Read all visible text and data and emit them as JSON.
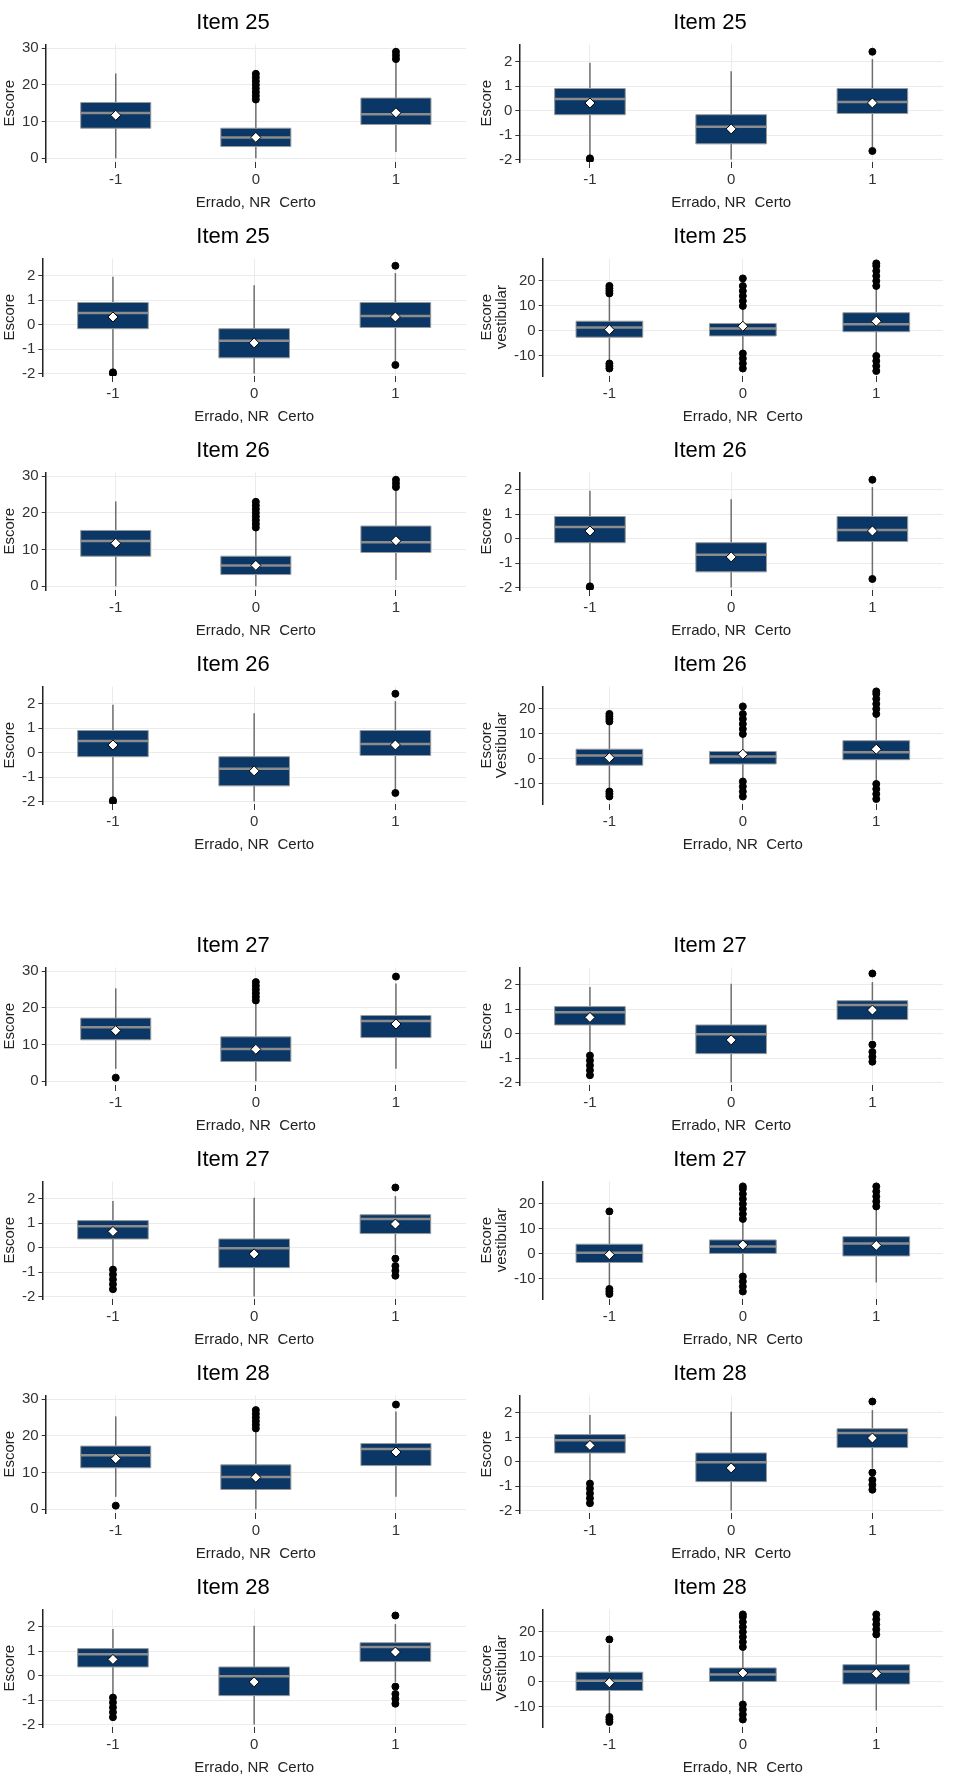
{
  "chart_data": [
    {
      "type": "box",
      "title": "Item 25",
      "xlabel": "Errado, NR  Certo",
      "ylabel": "Escore",
      "categories": [
        "-1",
        "0",
        "1"
      ],
      "color": "#0b3766",
      "grid": true,
      "ylim": [
        -1,
        31
      ],
      "yticks": [
        0,
        10,
        20,
        30
      ],
      "boxes": [
        {
          "low": 0,
          "q1": 8.2,
          "median": 12.3,
          "q3": 15.2,
          "high": 23.1,
          "mean": 11.7
        },
        {
          "low": 0,
          "q1": 3.2,
          "median": 5.7,
          "q3": 8.2,
          "high": 15.5,
          "mean": 5.7,
          "outliers": [
            16,
            17,
            18,
            19,
            20,
            21,
            22,
            23
          ]
        },
        {
          "low": 1.7,
          "q1": 9.2,
          "median": 12,
          "q3": 16.4,
          "high": 26,
          "mean": 12.4,
          "outliers": [
            27,
            28,
            29
          ]
        }
      ]
    },
    {
      "type": "box",
      "title": "Item 25",
      "xlabel": "Errado, NR  Certo",
      "ylabel": "Escore",
      "categories": [
        "-1",
        "0",
        "1"
      ],
      "color": "#0b3766",
      "grid": true,
      "ylim": [
        -2.1,
        2.7
      ],
      "yticks": [
        -2,
        -1,
        0,
        1,
        2
      ],
      "boxes": [
        {
          "low": -1.8,
          "q1": -0.17,
          "median": 0.47,
          "q3": 0.9,
          "high": 1.95,
          "mean": 0.31,
          "outliers": [
            -1.95,
            -2
          ]
        },
        {
          "low": -2,
          "q1": -1.36,
          "median": -0.66,
          "q3": -0.17,
          "high": 1.6,
          "mean": -0.75
        },
        {
          "low": -1.5,
          "q1": -0.12,
          "median": 0.35,
          "q3": 0.9,
          "high": 2.1,
          "mean": 0.31,
          "outliers": [
            -1.65,
            2.4
          ]
        }
      ]
    },
    {
      "type": "box",
      "title": "Item 25",
      "xlabel": "Errado, NR  Certo",
      "ylabel": "Escore",
      "categories": [
        "-1",
        "0",
        "1"
      ],
      "color": "#0b3766",
      "grid": true,
      "ylim": [
        -2.1,
        2.7
      ],
      "yticks": [
        -2,
        -1,
        0,
        1,
        2
      ],
      "boxes": [
        {
          "low": -1.8,
          "q1": -0.17,
          "median": 0.47,
          "q3": 0.9,
          "high": 1.95,
          "mean": 0.31,
          "outliers": [
            -1.95,
            -2
          ]
        },
        {
          "low": -2,
          "q1": -1.36,
          "median": -0.66,
          "q3": -0.17,
          "high": 1.6,
          "mean": -0.75
        },
        {
          "low": -1.5,
          "q1": -0.12,
          "median": 0.35,
          "q3": 0.9,
          "high": 2.1,
          "mean": 0.31,
          "outliers": [
            -1.65,
            2.4
          ]
        }
      ]
    },
    {
      "type": "box",
      "title": "Item 25",
      "xlabel": "Errado, NR  Certo",
      "ylabel": "Escore\nvestibular",
      "categories": [
        "-1",
        "0",
        "1"
      ],
      "color": "#0b3766",
      "grid": true,
      "ylim": [
        -18,
        29
      ],
      "yticks": [
        -10,
        0,
        10,
        20
      ],
      "boxes": [
        {
          "low": -12,
          "q1": -2.5,
          "median": 1.4,
          "q3": 3.9,
          "high": 14,
          "mean": 0.5,
          "outliers": [
            -15,
            -14,
            -13,
            15,
            16,
            17,
            18
          ]
        },
        {
          "low": -8,
          "q1": -2,
          "median": 1,
          "q3": 3,
          "high": 9,
          "mean": 1.9,
          "outliers": [
            -15,
            -13,
            -11,
            -9,
            10,
            12,
            14,
            16,
            18,
            21
          ]
        },
        {
          "low": -9.7,
          "q1": -0.3,
          "median": 2.7,
          "q3": 7.3,
          "high": 17.5,
          "mean": 3.9,
          "outliers": [
            -16,
            -14,
            -12,
            -10,
            18,
            20,
            22,
            24,
            26,
            27
          ]
        }
      ]
    },
    {
      "type": "box",
      "title": "Item 26",
      "xlabel": "Errado, NR  Certo",
      "ylabel": "Escore",
      "categories": [
        "-1",
        "0",
        "1"
      ],
      "color": "#0b3766",
      "grid": true,
      "ylim": [
        -1,
        31
      ],
      "yticks": [
        0,
        10,
        20,
        30
      ],
      "boxes": [
        {
          "low": 0,
          "q1": 8.2,
          "median": 12.3,
          "q3": 15.2,
          "high": 23.1,
          "mean": 11.7
        },
        {
          "low": 0,
          "q1": 3.2,
          "median": 5.7,
          "q3": 8.2,
          "high": 15.5,
          "mean": 5.7,
          "outliers": [
            16,
            17,
            18,
            19,
            20,
            21,
            22,
            23
          ]
        },
        {
          "low": 1.7,
          "q1": 9.2,
          "median": 12,
          "q3": 16.4,
          "high": 26,
          "mean": 12.4,
          "outliers": [
            27,
            28,
            29
          ]
        }
      ]
    },
    {
      "type": "box",
      "title": "Item 26",
      "xlabel": "Errado, NR  Certo",
      "ylabel": "Escore",
      "categories": [
        "-1",
        "0",
        "1"
      ],
      "color": "#0b3766",
      "grid": true,
      "ylim": [
        -2.1,
        2.7
      ],
      "yticks": [
        -2,
        -1,
        0,
        1,
        2
      ],
      "boxes": [
        {
          "low": -1.8,
          "q1": -0.17,
          "median": 0.47,
          "q3": 0.9,
          "high": 1.95,
          "mean": 0.31,
          "outliers": [
            -1.95,
            -2
          ]
        },
        {
          "low": -2,
          "q1": -1.36,
          "median": -0.66,
          "q3": -0.17,
          "high": 1.6,
          "mean": -0.75
        },
        {
          "low": -1.5,
          "q1": -0.12,
          "median": 0.35,
          "q3": 0.9,
          "high": 2.1,
          "mean": 0.31,
          "outliers": [
            -1.65,
            2.4
          ]
        }
      ]
    },
    {
      "type": "box",
      "title": "Item 26",
      "xlabel": "Errado, NR  Certo",
      "ylabel": "Escore",
      "categories": [
        "-1",
        "0",
        "1"
      ],
      "color": "#0b3766",
      "grid": true,
      "ylim": [
        -2.1,
        2.7
      ],
      "yticks": [
        -2,
        -1,
        0,
        1,
        2
      ],
      "boxes": [
        {
          "low": -1.8,
          "q1": -0.17,
          "median": 0.47,
          "q3": 0.9,
          "high": 1.95,
          "mean": 0.31,
          "outliers": [
            -1.95,
            -2
          ]
        },
        {
          "low": -2,
          "q1": -1.36,
          "median": -0.66,
          "q3": -0.17,
          "high": 1.6,
          "mean": -0.75
        },
        {
          "low": -1.5,
          "q1": -0.12,
          "median": 0.35,
          "q3": 0.9,
          "high": 2.1,
          "mean": 0.31,
          "outliers": [
            -1.65,
            2.4
          ]
        }
      ]
    },
    {
      "type": "box",
      "title": "Item 26",
      "xlabel": "Errado, NR  Certo",
      "ylabel": "Escore\nVestibular",
      "categories": [
        "-1",
        "0",
        "1"
      ],
      "color": "#0b3766",
      "grid": true,
      "ylim": [
        -18,
        29
      ],
      "yticks": [
        -10,
        0,
        10,
        20
      ],
      "boxes": [
        {
          "low": -12,
          "q1": -2.5,
          "median": 1.4,
          "q3": 3.9,
          "high": 14,
          "mean": 0.5,
          "outliers": [
            -15,
            -14,
            -13,
            15,
            16,
            17,
            18
          ]
        },
        {
          "low": -8,
          "q1": -2,
          "median": 1,
          "q3": 3,
          "high": 9,
          "mean": 1.9,
          "outliers": [
            -15,
            -13,
            -11,
            -9,
            10,
            12,
            14,
            16,
            18,
            21
          ]
        },
        {
          "low": -9.7,
          "q1": -0.3,
          "median": 2.7,
          "q3": 7.3,
          "high": 17.5,
          "mean": 3.9,
          "outliers": [
            -16,
            -14,
            -12,
            -10,
            18,
            20,
            22,
            24,
            26,
            27
          ]
        }
      ]
    },
    {
      "type": "box",
      "title": "Item 27",
      "xlabel": "Errado, NR  Certo",
      "ylabel": "Escore",
      "categories": [
        "-1",
        "0",
        "1"
      ],
      "color": "#0b3766",
      "grid": true,
      "ylim": [
        -1,
        31
      ],
      "yticks": [
        0,
        10,
        20,
        30
      ],
      "boxes": [
        {
          "low": 3.4,
          "q1": 11.3,
          "median": 14.7,
          "q3": 17.2,
          "high": 25.3,
          "mean": 13.8,
          "outliers": [
            1
          ]
        },
        {
          "low": 0,
          "q1": 5.4,
          "median": 8.8,
          "q3": 12.1,
          "high": 21.5,
          "mean": 8.7,
          "outliers": [
            22,
            23,
            24,
            25,
            26,
            27
          ]
        },
        {
          "low": 3.4,
          "q1": 11.9,
          "median": 16.4,
          "q3": 17.9,
          "high": 26.6,
          "mean": 15.6,
          "outliers": [
            28.5
          ]
        }
      ]
    },
    {
      "type": "box",
      "title": "Item 27",
      "xlabel": "Errado, NR  Certo",
      "ylabel": "Escore",
      "categories": [
        "-1",
        "0",
        "1"
      ],
      "color": "#0b3766",
      "grid": true,
      "ylim": [
        -2.1,
        2.7
      ],
      "yticks": [
        -2,
        -1,
        0,
        1,
        2
      ],
      "boxes": [
        {
          "low": -0.78,
          "q1": 0.35,
          "median": 0.87,
          "q3": 1.1,
          "high": 1.9,
          "mean": 0.66,
          "outliers": [
            -0.9,
            -1.1,
            -1.3,
            -1.5,
            -1.7
          ]
        },
        {
          "low": -2,
          "q1": -0.82,
          "median": -0.03,
          "q3": 0.35,
          "high": 2.03,
          "mean": -0.26
        },
        {
          "low": -0.26,
          "q1": 0.57,
          "median": 1.17,
          "q3": 1.34,
          "high": 2.1,
          "mean": 0.96,
          "outliers": [
            -1.15,
            -0.95,
            -0.75,
            -0.45,
            2.45
          ]
        }
      ]
    },
    {
      "type": "box",
      "title": "Item 27",
      "xlabel": "Errado, NR  Certo",
      "ylabel": "Escore",
      "categories": [
        "-1",
        "0",
        "1"
      ],
      "color": "#0b3766",
      "grid": true,
      "ylim": [
        -2.1,
        2.7
      ],
      "yticks": [
        -2,
        -1,
        0,
        1,
        2
      ],
      "boxes": [
        {
          "low": -0.78,
          "q1": 0.35,
          "median": 0.87,
          "q3": 1.1,
          "high": 1.9,
          "mean": 0.66,
          "outliers": [
            -0.9,
            -1.1,
            -1.3,
            -1.5,
            -1.7
          ]
        },
        {
          "low": -2,
          "q1": -0.82,
          "median": -0.03,
          "q3": 0.35,
          "high": 2.03,
          "mean": -0.26
        },
        {
          "low": -0.26,
          "q1": 0.57,
          "median": 1.17,
          "q3": 1.34,
          "high": 2.1,
          "mean": 0.96,
          "outliers": [
            -1.15,
            -0.95,
            -0.75,
            -0.45,
            2.45
          ]
        }
      ]
    },
    {
      "type": "box",
      "title": "Item 27",
      "xlabel": "Errado, NR  Certo",
      "ylabel": "Escore\nvestibular",
      "categories": [
        "-1",
        "0",
        "1"
      ],
      "color": "#0b3766",
      "grid": true,
      "ylim": [
        -18,
        29
      ],
      "yticks": [
        -10,
        0,
        10,
        20
      ],
      "boxes": [
        {
          "low": -13,
          "q1": -3.4,
          "median": 0.5,
          "q3": 3.9,
          "high": 15,
          "mean": -0.3,
          "outliers": [
            -16,
            -15,
            -14,
            17
          ]
        },
        {
          "low": -8,
          "q1": 0,
          "median": 3,
          "q3": 5.6,
          "high": 13,
          "mean": 3.6,
          "outliers": [
            -15,
            -13,
            -11,
            -9,
            14,
            16,
            18,
            20,
            22,
            24,
            26,
            27
          ]
        },
        {
          "low": -11.4,
          "q1": -0.8,
          "median": 4.2,
          "q3": 6.9,
          "high": 18,
          "mean": 3.4,
          "outliers": [
            19,
            21,
            23,
            25,
            27
          ]
        }
      ]
    },
    {
      "type": "box",
      "title": "Item 28",
      "xlabel": "Errado, NR  Certo",
      "ylabel": "Escore",
      "categories": [
        "-1",
        "0",
        "1"
      ],
      "color": "#0b3766",
      "grid": true,
      "ylim": [
        -1,
        31
      ],
      "yticks": [
        0,
        10,
        20,
        30
      ],
      "boxes": [
        {
          "low": 3.4,
          "q1": 11.3,
          "median": 14.7,
          "q3": 17.2,
          "high": 25.3,
          "mean": 13.8,
          "outliers": [
            1
          ]
        },
        {
          "low": 0,
          "q1": 5.4,
          "median": 8.8,
          "q3": 12.1,
          "high": 21.5,
          "mean": 8.7,
          "outliers": [
            22,
            23,
            24,
            25,
            26,
            27
          ]
        },
        {
          "low": 3.4,
          "q1": 11.9,
          "median": 16.4,
          "q3": 17.9,
          "high": 26.6,
          "mean": 15.6,
          "outliers": [
            28.5
          ]
        }
      ]
    },
    {
      "type": "box",
      "title": "Item 28",
      "xlabel": "Errado, NR  Certo",
      "ylabel": "Escore",
      "categories": [
        "-1",
        "0",
        "1"
      ],
      "color": "#0b3766",
      "grid": true,
      "ylim": [
        -2.1,
        2.7
      ],
      "yticks": [
        -2,
        -1,
        0,
        1,
        2
      ],
      "boxes": [
        {
          "low": -0.78,
          "q1": 0.35,
          "median": 0.87,
          "q3": 1.1,
          "high": 1.9,
          "mean": 0.66,
          "outliers": [
            -0.9,
            -1.1,
            -1.3,
            -1.5,
            -1.7
          ]
        },
        {
          "low": -2,
          "q1": -0.82,
          "median": -0.03,
          "q3": 0.35,
          "high": 2.03,
          "mean": -0.26
        },
        {
          "low": -0.26,
          "q1": 0.57,
          "median": 1.17,
          "q3": 1.34,
          "high": 2.1,
          "mean": 0.96,
          "outliers": [
            -1.15,
            -0.95,
            -0.75,
            -0.45,
            2.45
          ]
        }
      ]
    },
    {
      "type": "box",
      "title": "Item 28",
      "xlabel": "Errado, NR  Certo",
      "ylabel": "Escore",
      "categories": [
        "-1",
        "0",
        "1"
      ],
      "color": "#0b3766",
      "grid": true,
      "ylim": [
        -2.1,
        2.7
      ],
      "yticks": [
        -2,
        -1,
        0,
        1,
        2
      ],
      "boxes": [
        {
          "low": -0.78,
          "q1": 0.35,
          "median": 0.87,
          "q3": 1.1,
          "high": 1.9,
          "mean": 0.66,
          "outliers": [
            -0.9,
            -1.1,
            -1.3,
            -1.5,
            -1.7
          ]
        },
        {
          "low": -2,
          "q1": -0.82,
          "median": -0.03,
          "q3": 0.35,
          "high": 2.03,
          "mean": -0.26
        },
        {
          "low": -0.26,
          "q1": 0.57,
          "median": 1.17,
          "q3": 1.34,
          "high": 2.1,
          "mean": 0.96,
          "outliers": [
            -1.15,
            -0.95,
            -0.75,
            -0.45,
            2.45
          ]
        }
      ]
    },
    {
      "type": "box",
      "title": "Item 28",
      "xlabel": "Errado, NR  Certo",
      "ylabel": "Escore\nVestibular",
      "categories": [
        "-1",
        "0",
        "1"
      ],
      "color": "#0b3766",
      "grid": true,
      "ylim": [
        -18,
        29
      ],
      "yticks": [
        -10,
        0,
        10,
        20
      ],
      "boxes": [
        {
          "low": -13,
          "q1": -3.4,
          "median": 0.5,
          "q3": 3.9,
          "high": 15,
          "mean": -0.3,
          "outliers": [
            -16,
            -15,
            -14,
            17
          ]
        },
        {
          "low": -8,
          "q1": 0,
          "median": 3,
          "q3": 5.6,
          "high": 13,
          "mean": 3.6,
          "outliers": [
            -15,
            -13,
            -11,
            -9,
            14,
            16,
            18,
            20,
            22,
            24,
            26,
            27
          ]
        },
        {
          "low": -11.4,
          "q1": -0.8,
          "median": 4.2,
          "q3": 6.9,
          "high": 18,
          "mean": 3.4,
          "outliers": [
            19,
            21,
            23,
            25,
            27
          ]
        }
      ]
    }
  ]
}
